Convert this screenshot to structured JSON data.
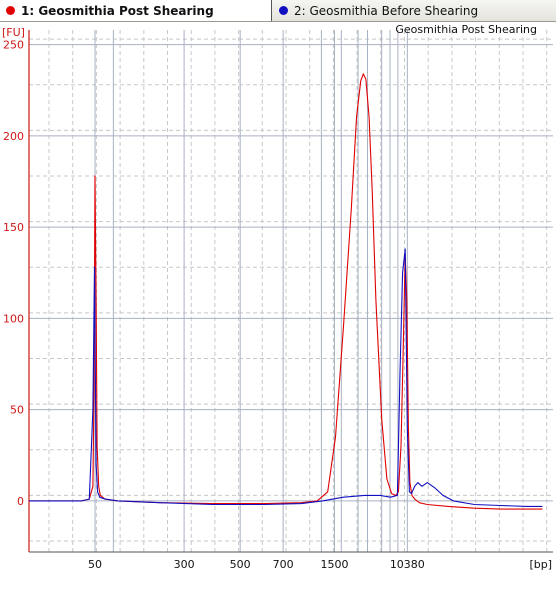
{
  "tabs": [
    {
      "label": "1: Geosmithia Post Shearing",
      "color": "#e00000",
      "active": true
    },
    {
      "label": "2: Geosmithia Before Shearing",
      "color": "#1010c0",
      "active": false
    }
  ],
  "chart_data": {
    "type": "line",
    "title": "Geosmithia Post Shearing",
    "ylabel": "[FU]",
    "xlabel": "[bp]",
    "ylim": [
      -28,
      258
    ],
    "xlim": [
      0,
      100
    ],
    "y_ticks": [
      0,
      50,
      100,
      150,
      200,
      250
    ],
    "x_ticks": [
      {
        "label": "50",
        "pos": 12.6
      },
      {
        "label": "300",
        "pos": 29.6
      },
      {
        "label": "500",
        "pos": 40.3
      },
      {
        "label": "700",
        "pos": 48.5
      },
      {
        "label": "1500",
        "pos": 58.3
      },
      {
        "label": "10380",
        "pos": 72.2
      }
    ],
    "ladder_lines": [
      12.6,
      16.1,
      29.6,
      40.3,
      48.5,
      55.8,
      58.3,
      59.6,
      62.8,
      64.6,
      67.3,
      68.9,
      70.4,
      72.2
    ],
    "grid": true,
    "series": [
      {
        "name": "1: Geosmithia Post Shearing",
        "color": "#e00000",
        "x": [
          0,
          5,
          10,
          11.5,
          12.2,
          12.4,
          12.6,
          12.8,
          13.0,
          13.3,
          13.6,
          14.5,
          17,
          25,
          35,
          45,
          52,
          55,
          57,
          58.5,
          60,
          61.5,
          62.5,
          63.3,
          63.8,
          64.3,
          64.9,
          65.5,
          66.2,
          67.3,
          68.3,
          69.2,
          70.0,
          70.5,
          71.0,
          71.4,
          71.8,
          72.1,
          72.4,
          72.7,
          73.1,
          73.6,
          74.5,
          76,
          80,
          85,
          90,
          95,
          98
        ],
        "y": [
          0,
          0,
          0,
          1,
          8,
          60,
          178,
          110,
          30,
          8,
          3,
          1,
          0,
          -1,
          -1.5,
          -1.5,
          -1,
          0,
          5,
          35,
          95,
          160,
          210,
          230,
          234,
          231,
          210,
          170,
          110,
          45,
          12,
          4,
          3,
          5,
          30,
          80,
          135,
          110,
          40,
          10,
          3,
          1,
          -1,
          -2,
          -3,
          -4,
          -4.5,
          -4.5,
          -4.5
        ]
      },
      {
        "name": "2: Geosmithia Before Shearing",
        "color": "#1010c0",
        "x": [
          0,
          5,
          10,
          11.5,
          12.2,
          12.5,
          12.8,
          13.1,
          13.5,
          14.5,
          17,
          25,
          35,
          45,
          52,
          56,
          60,
          64,
          67,
          69,
          70.3,
          70.8,
          71.3,
          71.8,
          72.2,
          72.6,
          73.0,
          73.6,
          74.2,
          75.0,
          76.0,
          77.5,
          79,
          81,
          85,
          90,
          95,
          98
        ],
        "y": [
          0,
          0,
          0,
          1,
          50,
          128,
          20,
          5,
          2,
          1,
          0,
          -1,
          -2,
          -2,
          -1.5,
          0,
          2,
          3,
          3,
          2,
          3,
          70,
          125,
          138,
          40,
          5,
          4,
          8,
          10,
          8,
          10,
          7,
          3,
          0,
          -2,
          -2.5,
          -3,
          -3
        ]
      }
    ]
  }
}
